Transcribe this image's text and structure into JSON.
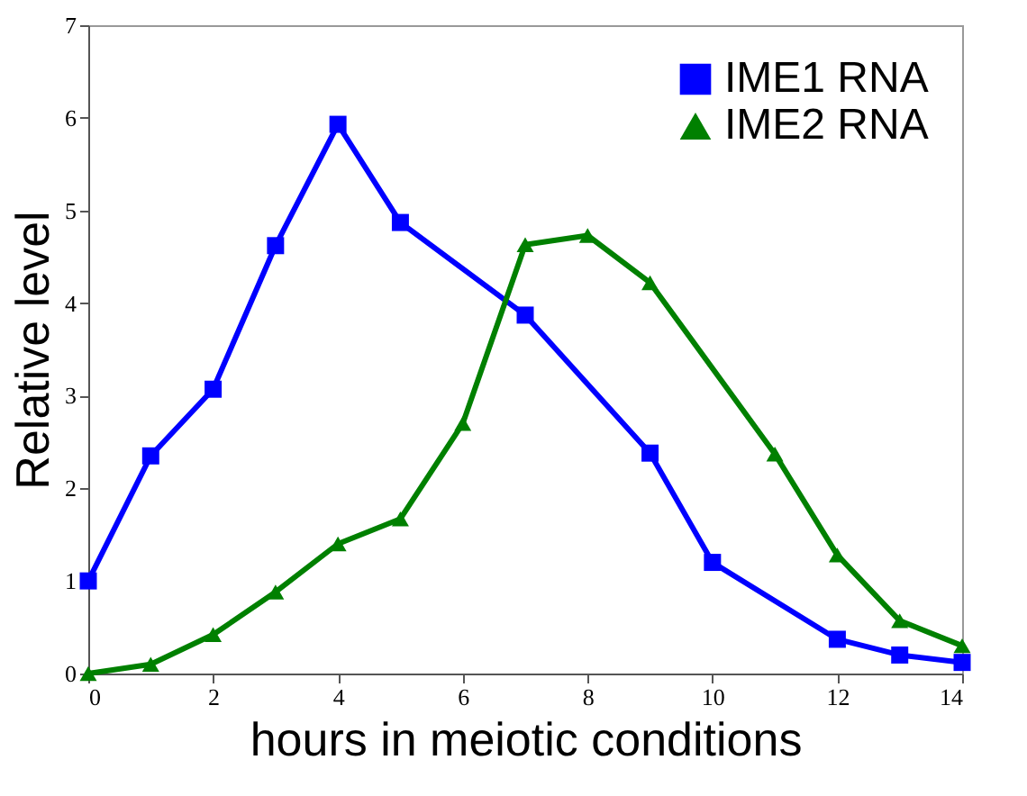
{
  "chart_data": {
    "type": "line",
    "xlabel": "hours in meiotic conditions",
    "ylabel": "Relative level",
    "series": [
      {
        "name": "IME1 RNA",
        "color": "#0000ff",
        "marker": "square",
        "x": [
          0,
          1,
          2,
          3,
          4,
          5,
          7,
          9,
          10,
          12,
          13,
          14
        ],
        "values": [
          1.0,
          2.35,
          3.07,
          4.62,
          5.93,
          4.87,
          3.87,
          2.38,
          1.2,
          0.37,
          0.2,
          0.12
        ]
      },
      {
        "name": "IME2 RNA",
        "color": "#008000",
        "marker": "triangle",
        "x": [
          0,
          1,
          2,
          3,
          4,
          5,
          6,
          7,
          8,
          9,
          11,
          12,
          13,
          14
        ],
        "values": [
          0.0,
          0.1,
          0.42,
          0.88,
          1.4,
          1.67,
          2.7,
          4.63,
          4.73,
          4.22,
          2.37,
          1.28,
          0.57,
          0.3
        ]
      }
    ],
    "xlim": [
      0,
      14
    ],
    "xticks": [
      0,
      2,
      4,
      6,
      8,
      10,
      12,
      14
    ],
    "ylim": [
      0,
      7
    ],
    "yticks": [
      0,
      1,
      2,
      3,
      4,
      5,
      6,
      7
    ],
    "grid": false,
    "legend": "top right",
    "line_style": "solid"
  }
}
